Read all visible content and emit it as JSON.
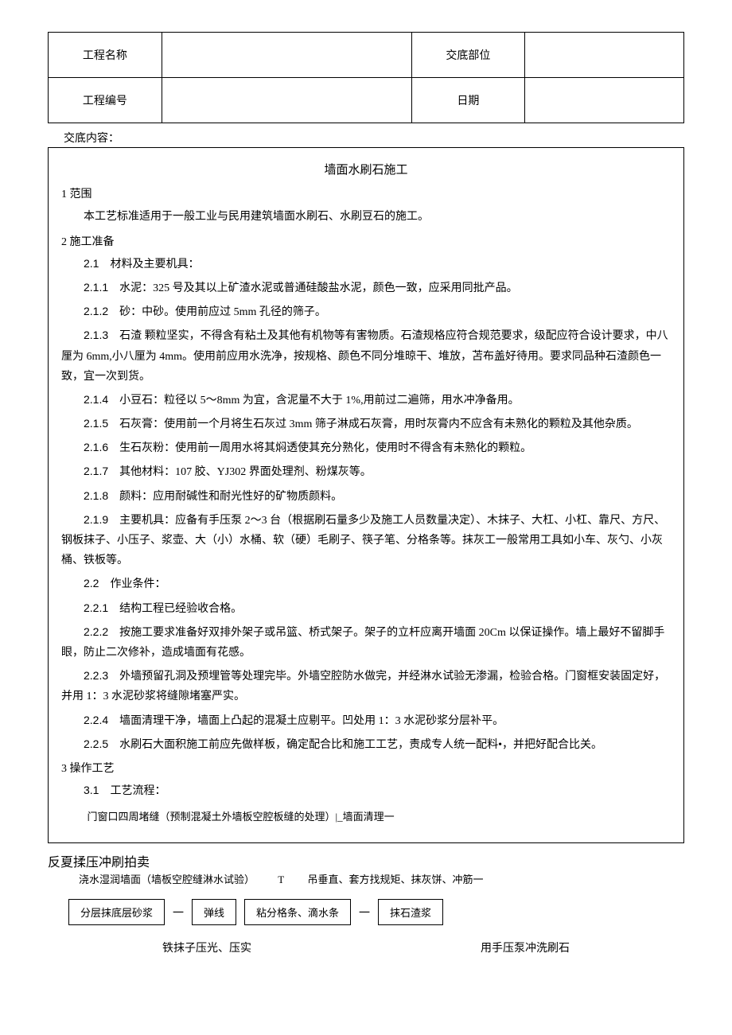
{
  "header": {
    "project_name_label": "工程名称",
    "project_name_value": "",
    "delivery_part_label": "交底部位",
    "delivery_part_value": "",
    "project_no_label": "工程编号",
    "project_no_value": "",
    "date_label": "日期",
    "date_value": ""
  },
  "sub_header": "交底内容：",
  "title": "墙面水刷石施工",
  "section1": {
    "heading": "1 范围",
    "body": "本工艺标准适用于一般工业与民用建筑墙面水刷石、水刷豆石的施工。"
  },
  "section2": {
    "heading": "2 施工准备",
    "i2_1": {
      "num": "2.1",
      "text": "材料及主要机具："
    },
    "i2_1_1": {
      "num": "2.1.1",
      "text": "水泥：325 号及其以上矿渣水泥或普通硅酸盐水泥，颜色一致，应采用同批产品。"
    },
    "i2_1_2": {
      "num": "2.1.2",
      "text": "砂：中砂。使用前应过 5mm 孔径的筛子。"
    },
    "i2_1_3": {
      "num": "2.1.3",
      "text": "石渣 颗粒坚实，不得含有粘土及其他有机物等有害物质。石渣规格应符合规范要求，级配应符合设计要求，中八厘为 6mm,小八厘为 4mm。使用前应用水洗净，按规格、颜色不同分堆晾干、堆放，苫布盖好待用。要求同品种石渣颜色一致，宜一次到货。"
    },
    "i2_1_4": {
      "num": "2.1.4",
      "text": "小豆石：粒径以 5～8mm 为宜，含泥量不大于 1%,用前过二遍筛，用水冲净备用。"
    },
    "i2_1_5": {
      "num": "2.1.5",
      "text": "石灰膏：使用前一个月将生石灰过 3mm 筛子淋成石灰膏，用时灰膏内不应含有未熟化的颗粒及其他杂质。"
    },
    "i2_1_6": {
      "num": "2.1.6",
      "text": "生石灰粉：使用前一周用水将其焖透使其充分熟化，使用时不得含有未熟化的颗粒。"
    },
    "i2_1_7": {
      "num": "2.1.7",
      "text": "其他材料：107 胶、YJ302 界面处理剂、粉煤灰等。"
    },
    "i2_1_8": {
      "num": "2.1.8",
      "text": "颜料：应用耐碱性和耐光性好的矿物质颜料。"
    },
    "i2_1_9": {
      "num": "2.1.9",
      "text": "主要机具：应备有手压泵 2～3 台（根据刷石量多少及施工人员数量决定）、木抹子、大杠、小杠、靠尺、方尺、钢板抹子、小压子、浆壶、大（小）水桶、软（硬）毛刷子、筷子笔、分格条等。抹灰工一般常用工具如小车、灰勺、小灰桶、铁板等。"
    },
    "i2_2": {
      "num": "2.2",
      "text": "作业条件："
    },
    "i2_2_1": {
      "num": "2.2.1",
      "text": "结构工程已经验收合格。"
    },
    "i2_2_2": {
      "num": "2.2.2",
      "text": "按施工要求准备好双排外架子或吊篮、桥式架子。架子的立杆应离开墙面 20Cm 以保证操作。墙上最好不留脚手眼，防止二次修补，造成墙面有花感。"
    },
    "i2_2_3": {
      "num": "2.2.3",
      "text": "外墙预留孔洞及预埋管等处理完毕。外墙空腔防水做完，并经淋水试验无渗漏，检验合格。门窗框安装固定好，并用 1：3 水泥砂浆将缝隙堵塞严实。"
    },
    "i2_2_4": {
      "num": "2.2.4",
      "text": "墙面清理干净，墙面上凸起的混凝土应剔平。凹处用 1：3 水泥砂浆分层补平。"
    },
    "i2_2_5": {
      "num": "2.2.5",
      "text": "水刷石大面积施工前应先做样板，确定配合比和施工工艺，责成专人统一配料•，并把好配合比关。"
    }
  },
  "section3": {
    "heading": "3 操作工艺",
    "i3_1": {
      "num": "3.1",
      "text": "工艺流程："
    },
    "flow1": "门窗口四周堵缝（预制混凝土外墙板空腔板缝的处理）|_墙面清理一",
    "big_label": "反夏揉压冲刷拍卖",
    "flow2a": "浇水湿润墙面（墙板空腔缝淋水试验）",
    "flow2b": "T",
    "flow2c": "吊垂直、套方找规矩、抹灰饼、冲筋一",
    "boxes": {
      "b1": "分层抹底层砂浆",
      "a1": "一",
      "b2": "弹线",
      "b3": "粘分格条、滴水条",
      "a2": "一",
      "b4": "抹石渣浆"
    },
    "bottom": {
      "left": "铁抹子压光、压实",
      "right": "用手压泵冲洗刷石"
    }
  }
}
